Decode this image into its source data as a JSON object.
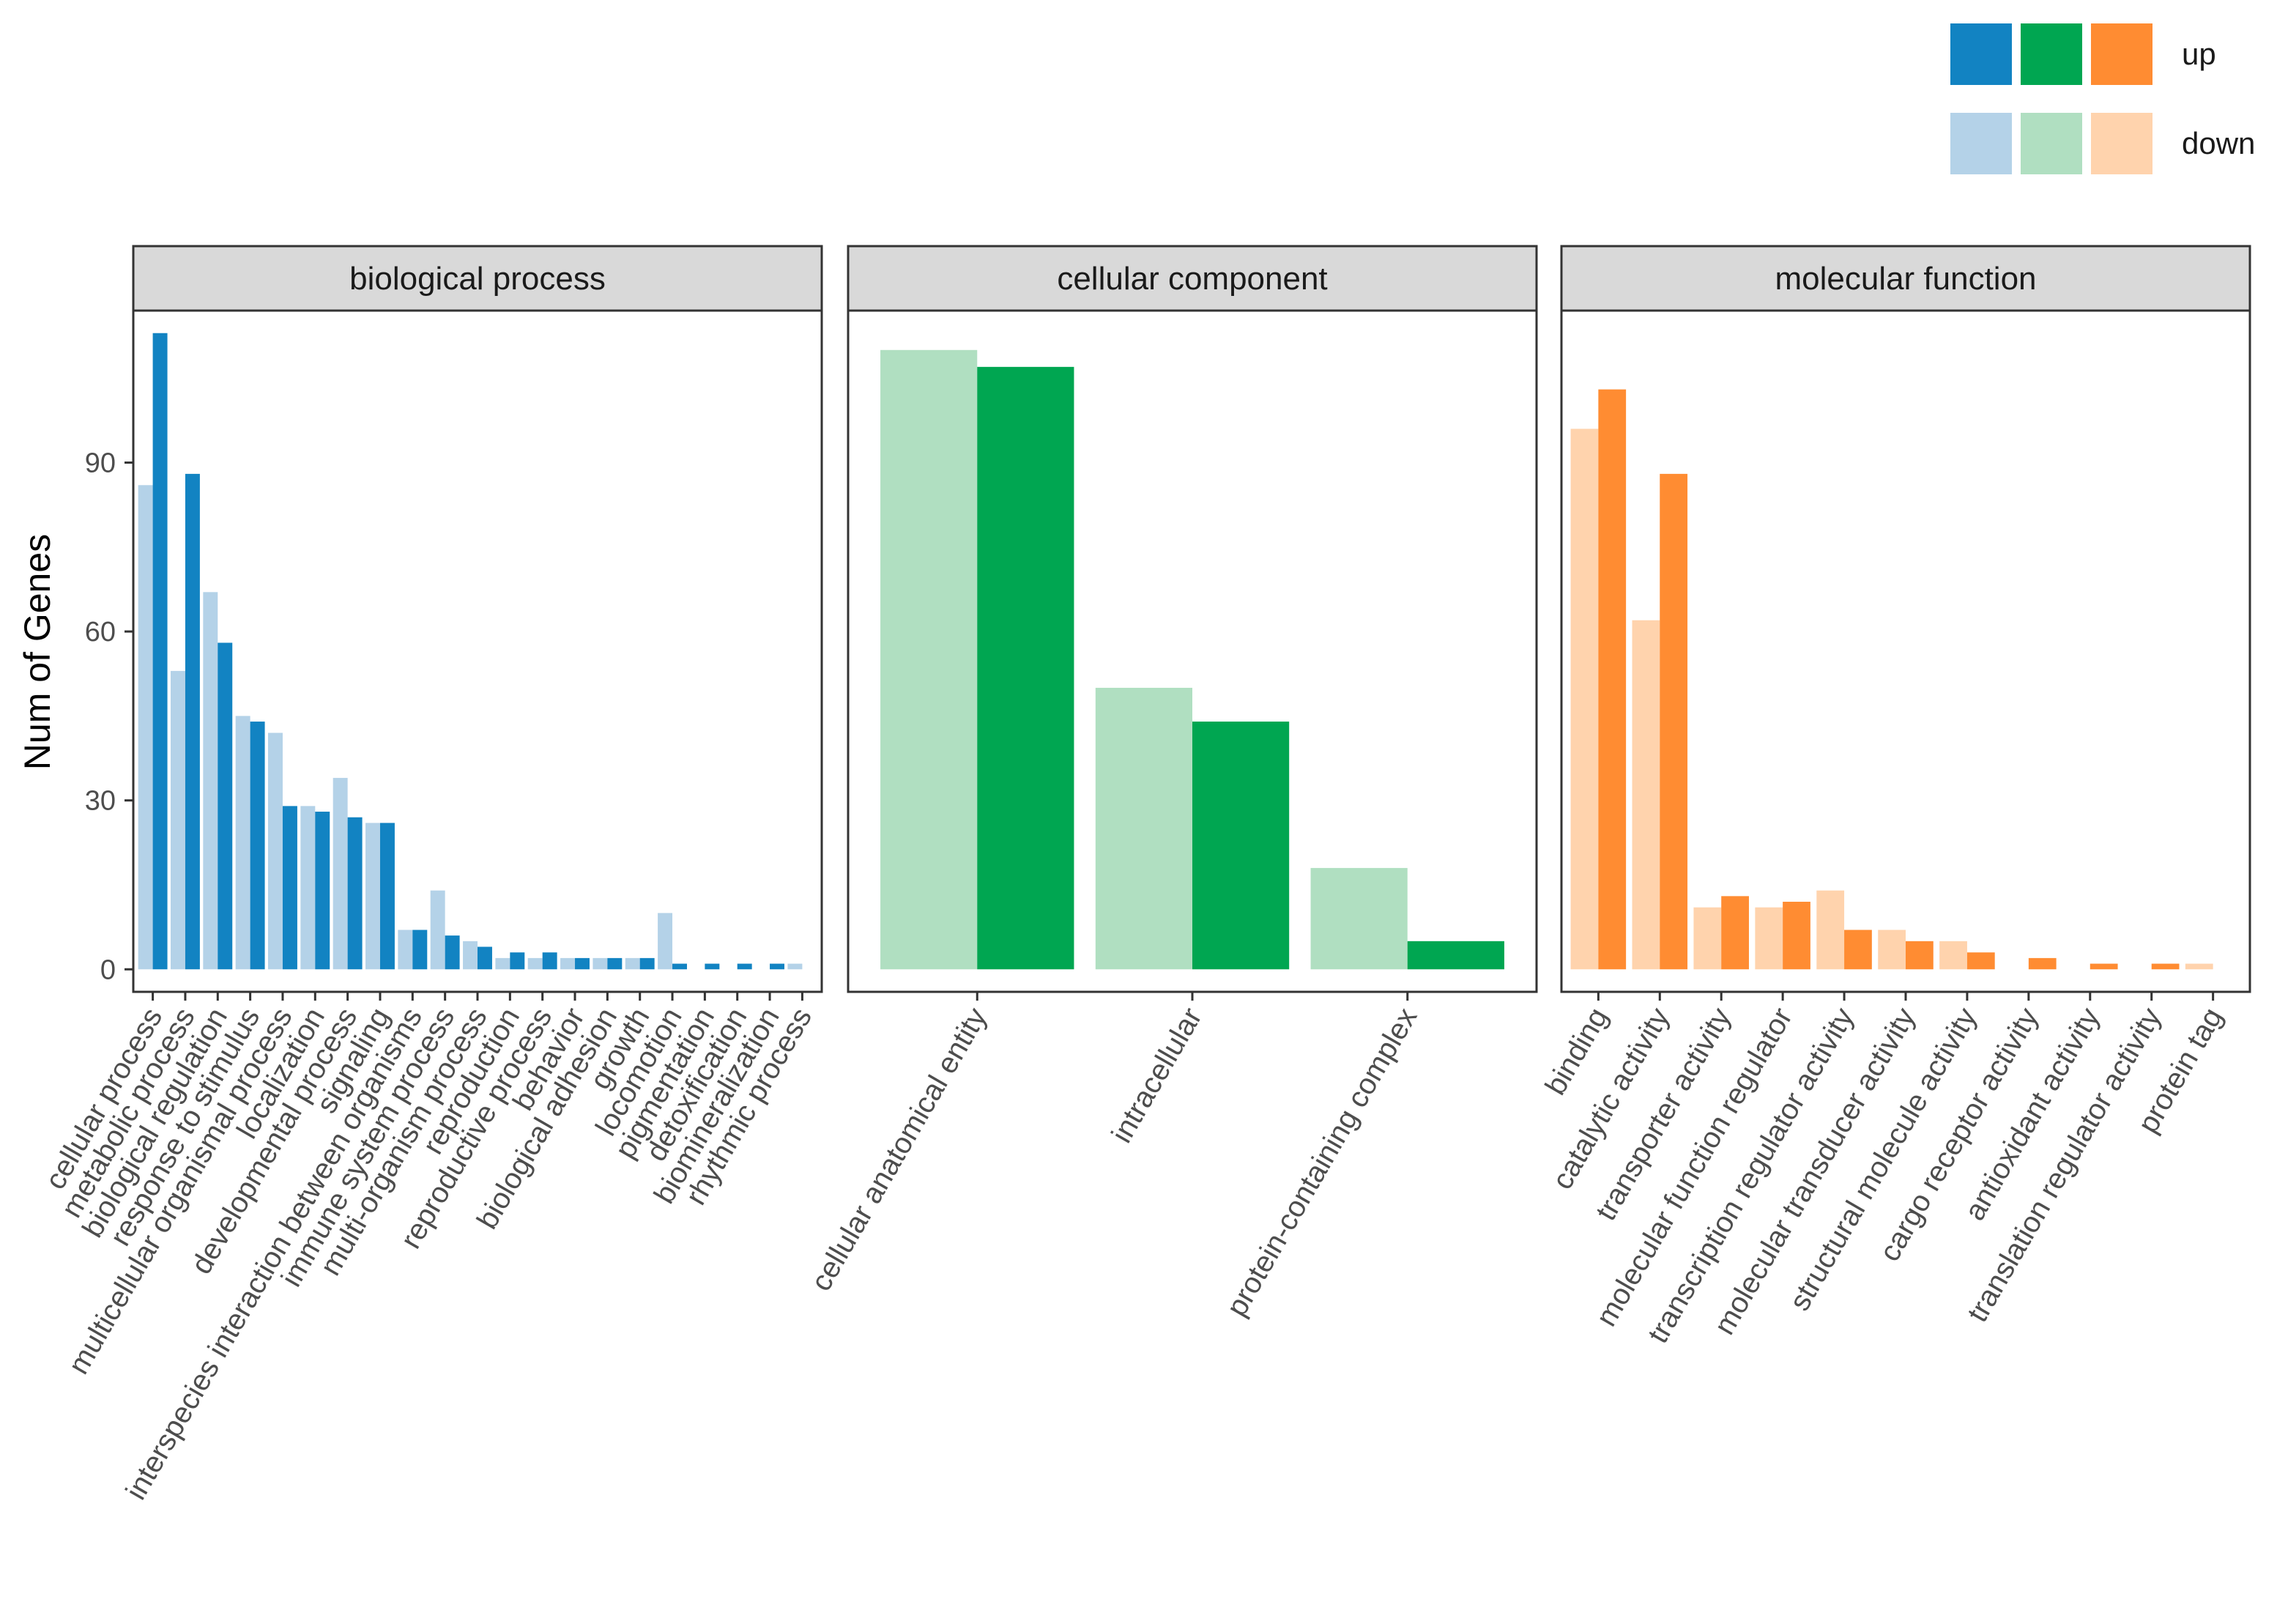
{
  "chart_data": {
    "type": "bar",
    "ylabel": "Num of Genes",
    "ylim": [
      -4,
      117
    ],
    "y_ticks": [
      0,
      30,
      60,
      90
    ],
    "grid": false,
    "legend": {
      "position": "top-right",
      "labels": [
        "up",
        "down"
      ],
      "up_colors": [
        "#1283C2",
        "#00A651",
        "#FF8C32"
      ],
      "down_colors": [
        "#B4D2E8",
        "#B0DFC1",
        "#FFD3AD"
      ]
    },
    "panels": [
      {
        "title": "biological process",
        "up_color": "#1283C2",
        "down_color": "#B4D2E8",
        "categories": [
          "cellular process",
          "metabolic process",
          "biological regulation",
          "response to stimulus",
          "multicellular organismal process",
          "localization",
          "developmental process",
          "signaling",
          "interspecies interaction between organisms",
          "immune system process",
          "multi-organism process",
          "reproduction",
          "reproductive process",
          "behavior",
          "biological adhesion",
          "growth",
          "locomotion",
          "pigmentation",
          "detoxification",
          "biomineralization",
          "rhythmic process"
        ],
        "series": [
          {
            "name": "down",
            "values": [
              86,
              53,
              67,
              45,
              42,
              29,
              34,
              26,
              7,
              14,
              5,
              2,
              2,
              2,
              2,
              2,
              10,
              0,
              0,
              0,
              1
            ]
          },
          {
            "name": "up",
            "values": [
              113,
              88,
              58,
              44,
              29,
              28,
              27,
              26,
              7,
              6,
              4,
              3,
              3,
              2,
              2,
              2,
              1,
              1,
              1,
              1,
              0
            ]
          }
        ]
      },
      {
        "title": "cellular component",
        "up_color": "#00A651",
        "down_color": "#B0DFC1",
        "categories": [
          "cellular anatomical entity",
          "intracellular",
          "protein-containing complex"
        ],
        "series": [
          {
            "name": "down",
            "values": [
              110,
              50,
              18
            ]
          },
          {
            "name": "up",
            "values": [
              107,
              44,
              5
            ]
          }
        ]
      },
      {
        "title": "molecular function",
        "up_color": "#FF8C32",
        "down_color": "#FFD3AD",
        "categories": [
          "binding",
          "catalytic activity",
          "transporter activity",
          "molecular function regulator",
          "transcription regulator activity",
          "molecular transducer activity",
          "structural molecule activity",
          "cargo receptor activity",
          "antioxidant activity",
          "translation regulator activity",
          "protein tag"
        ],
        "series": [
          {
            "name": "down",
            "values": [
              96,
              62,
              11,
              11,
              14,
              7,
              5,
              0,
              0,
              0,
              1
            ]
          },
          {
            "name": "up",
            "values": [
              103,
              88,
              13,
              12,
              7,
              5,
              3,
              2,
              1,
              1,
              0
            ]
          }
        ]
      }
    ]
  }
}
